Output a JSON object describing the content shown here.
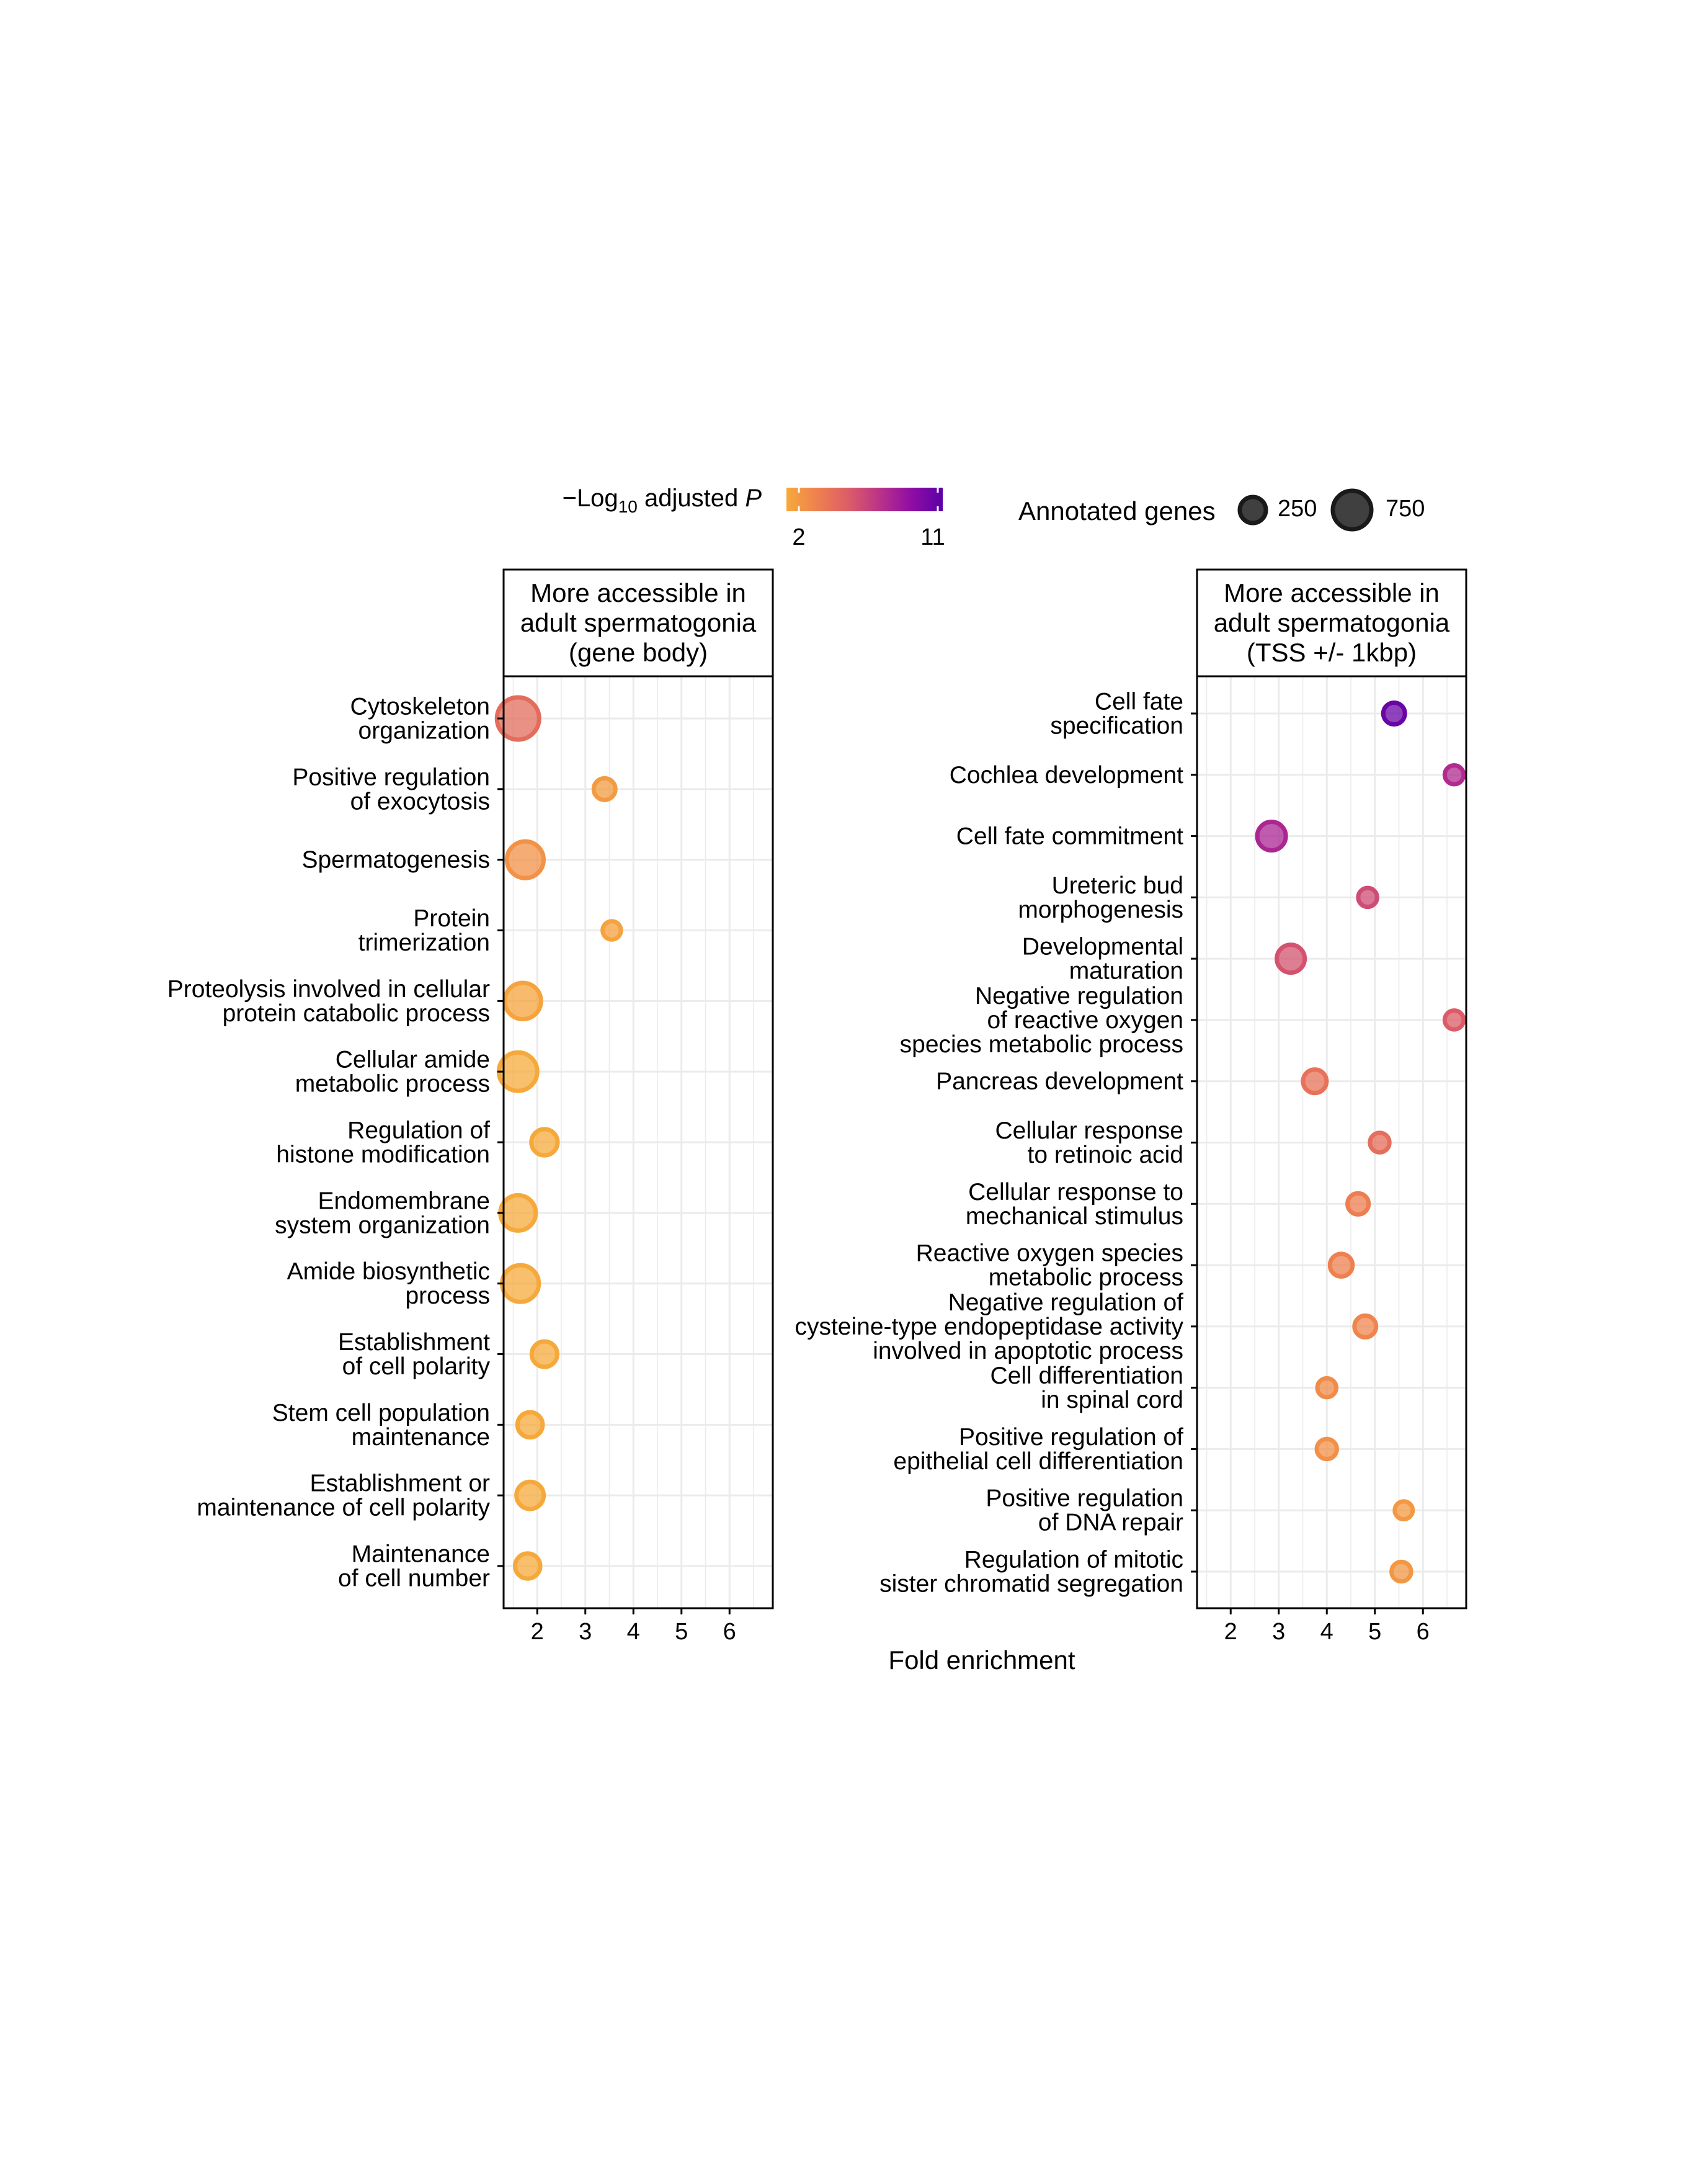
{
  "legend": {
    "color_title_prefix": "−Log",
    "color_title_sub": "10",
    "color_title_mid": " adjusted ",
    "color_title_italic": "P",
    "color_min_label": "2",
    "color_max_label": "11",
    "color_min": 2,
    "color_max": 11,
    "gradient": [
      "#f6a93b",
      "#ee8050",
      "#db5c68",
      "#b93289",
      "#8f0da4",
      "#5c01a6"
    ],
    "size_title": "Annotated genes",
    "size_labels": [
      "250",
      "750"
    ],
    "size_values": [
      250,
      750
    ]
  },
  "x_axis_title": "Fold enrichment",
  "chart_data": [
    {
      "type": "scatter",
      "panel_title": [
        "More accessible in",
        "adult spermatogonia",
        "(gene body)"
      ],
      "xlabel": "Fold enrichment",
      "xlim": [
        1.3,
        6.9
      ],
      "xticks": [
        2,
        3,
        4,
        5,
        6
      ],
      "grid": true,
      "points": [
        {
          "term": [
            "Cytoskeleton",
            "organization"
          ],
          "fold_enrichment": 1.6,
          "neg_log10_padj": 4.8,
          "annotated_genes": 900
        },
        {
          "term": [
            "Positive regulation",
            "of exocytosis"
          ],
          "fold_enrichment": 3.4,
          "neg_log10_padj": 2.6,
          "annotated_genes": 120
        },
        {
          "term": [
            "Spermatogenesis"
          ],
          "fold_enrichment": 1.75,
          "neg_log10_padj": 3.0,
          "annotated_genes": 620
        },
        {
          "term": [
            "Protein",
            "trimerization"
          ],
          "fold_enrichment": 3.55,
          "neg_log10_padj": 2.3,
          "annotated_genes": 60
        },
        {
          "term": [
            "Proteolysis involved in cellular",
            "protein catabolic process"
          ],
          "fold_enrichment": 1.7,
          "neg_log10_padj": 2.2,
          "annotated_genes": 600
        },
        {
          "term": [
            "Cellular amide",
            "metabolic process"
          ],
          "fold_enrichment": 1.6,
          "neg_log10_padj": 2.0,
          "annotated_genes": 700
        },
        {
          "term": [
            "Regulation of",
            "histone modification"
          ],
          "fold_enrichment": 2.15,
          "neg_log10_padj": 2.0,
          "annotated_genes": 230
        },
        {
          "term": [
            "Endomembrane",
            "system organization"
          ],
          "fold_enrichment": 1.6,
          "neg_log10_padj": 2.0,
          "annotated_genes": 560
        },
        {
          "term": [
            "Amide biosynthetic",
            "process"
          ],
          "fold_enrichment": 1.65,
          "neg_log10_padj": 2.0,
          "annotated_genes": 620
        },
        {
          "term": [
            "Establishment",
            "of cell polarity"
          ],
          "fold_enrichment": 2.15,
          "neg_log10_padj": 2.0,
          "annotated_genes": 210
        },
        {
          "term": [
            "Stem cell population",
            "maintenance"
          ],
          "fold_enrichment": 1.85,
          "neg_log10_padj": 2.0,
          "annotated_genes": 200
        },
        {
          "term": [
            "Establishment or",
            "maintenance of cell polarity"
          ],
          "fold_enrichment": 1.85,
          "neg_log10_padj": 2.0,
          "annotated_genes": 260
        },
        {
          "term": [
            "Maintenance",
            "of cell number"
          ],
          "fold_enrichment": 1.8,
          "neg_log10_padj": 2.0,
          "annotated_genes": 200
        }
      ]
    },
    {
      "type": "scatter",
      "panel_title": [
        "More accessible in",
        "adult spermatogonia",
        "(TSS +/- 1kbp)"
      ],
      "xlabel": "Fold enrichment",
      "xlim": [
        1.3,
        6.9
      ],
      "xticks": [
        2,
        3,
        4,
        5,
        6
      ],
      "grid": true,
      "points": [
        {
          "term": [
            "Cell fate",
            "specification"
          ],
          "fold_enrichment": 5.4,
          "neg_log10_padj": 10.5,
          "annotated_genes": 120
        },
        {
          "term": [
            "Cochlea development"
          ],
          "fold_enrichment": 6.65,
          "neg_log10_padj": 7.8,
          "annotated_genes": 70
        },
        {
          "term": [
            "Cell fate commitment"
          ],
          "fold_enrichment": 2.85,
          "neg_log10_padj": 8.0,
          "annotated_genes": 300
        },
        {
          "term": [
            "Ureteric bud",
            "morphogenesis"
          ],
          "fold_enrichment": 4.85,
          "neg_log10_padj": 6.3,
          "annotated_genes": 70
        },
        {
          "term": [
            "Developmental",
            "maturation"
          ],
          "fold_enrichment": 3.25,
          "neg_log10_padj": 6.0,
          "annotated_genes": 280
        },
        {
          "term": [
            "Negative regulation",
            "of reactive oxygen",
            "species metabolic process"
          ],
          "fold_enrichment": 6.65,
          "neg_log10_padj": 5.6,
          "annotated_genes": 70
        },
        {
          "term": [
            "Pancreas development"
          ],
          "fold_enrichment": 3.75,
          "neg_log10_padj": 4.5,
          "annotated_genes": 160
        },
        {
          "term": [
            "Cellular response",
            "to retinoic acid"
          ],
          "fold_enrichment": 5.1,
          "neg_log10_padj": 4.7,
          "annotated_genes": 80
        },
        {
          "term": [
            "Cellular response to",
            "mechanical stimulus"
          ],
          "fold_enrichment": 4.65,
          "neg_log10_padj": 3.9,
          "annotated_genes": 110
        },
        {
          "term": [
            "Reactive oxygen species",
            "metabolic process"
          ],
          "fold_enrichment": 4.3,
          "neg_log10_padj": 3.8,
          "annotated_genes": 140
        },
        {
          "term": [
            "Negative regulation of",
            "cysteine-type endopeptidase activity",
            "involved in apoptotic process"
          ],
          "fold_enrichment": 4.8,
          "neg_log10_padj": 3.6,
          "annotated_genes": 120
        },
        {
          "term": [
            "Cell differentiation",
            "in spinal cord"
          ],
          "fold_enrichment": 4.0,
          "neg_log10_padj": 3.3,
          "annotated_genes": 70
        },
        {
          "term": [
            "Positive regulation of",
            "epithelial cell differentiation"
          ],
          "fold_enrichment": 4.0,
          "neg_log10_padj": 3.1,
          "annotated_genes": 90
        },
        {
          "term": [
            "Positive regulation",
            "of DNA repair"
          ],
          "fold_enrichment": 5.6,
          "neg_log10_padj": 2.7,
          "annotated_genes": 55
        },
        {
          "term": [
            "Regulation of mitotic",
            "sister chromatid segregation"
          ],
          "fold_enrichment": 5.55,
          "neg_log10_padj": 2.8,
          "annotated_genes": 80
        }
      ]
    }
  ]
}
